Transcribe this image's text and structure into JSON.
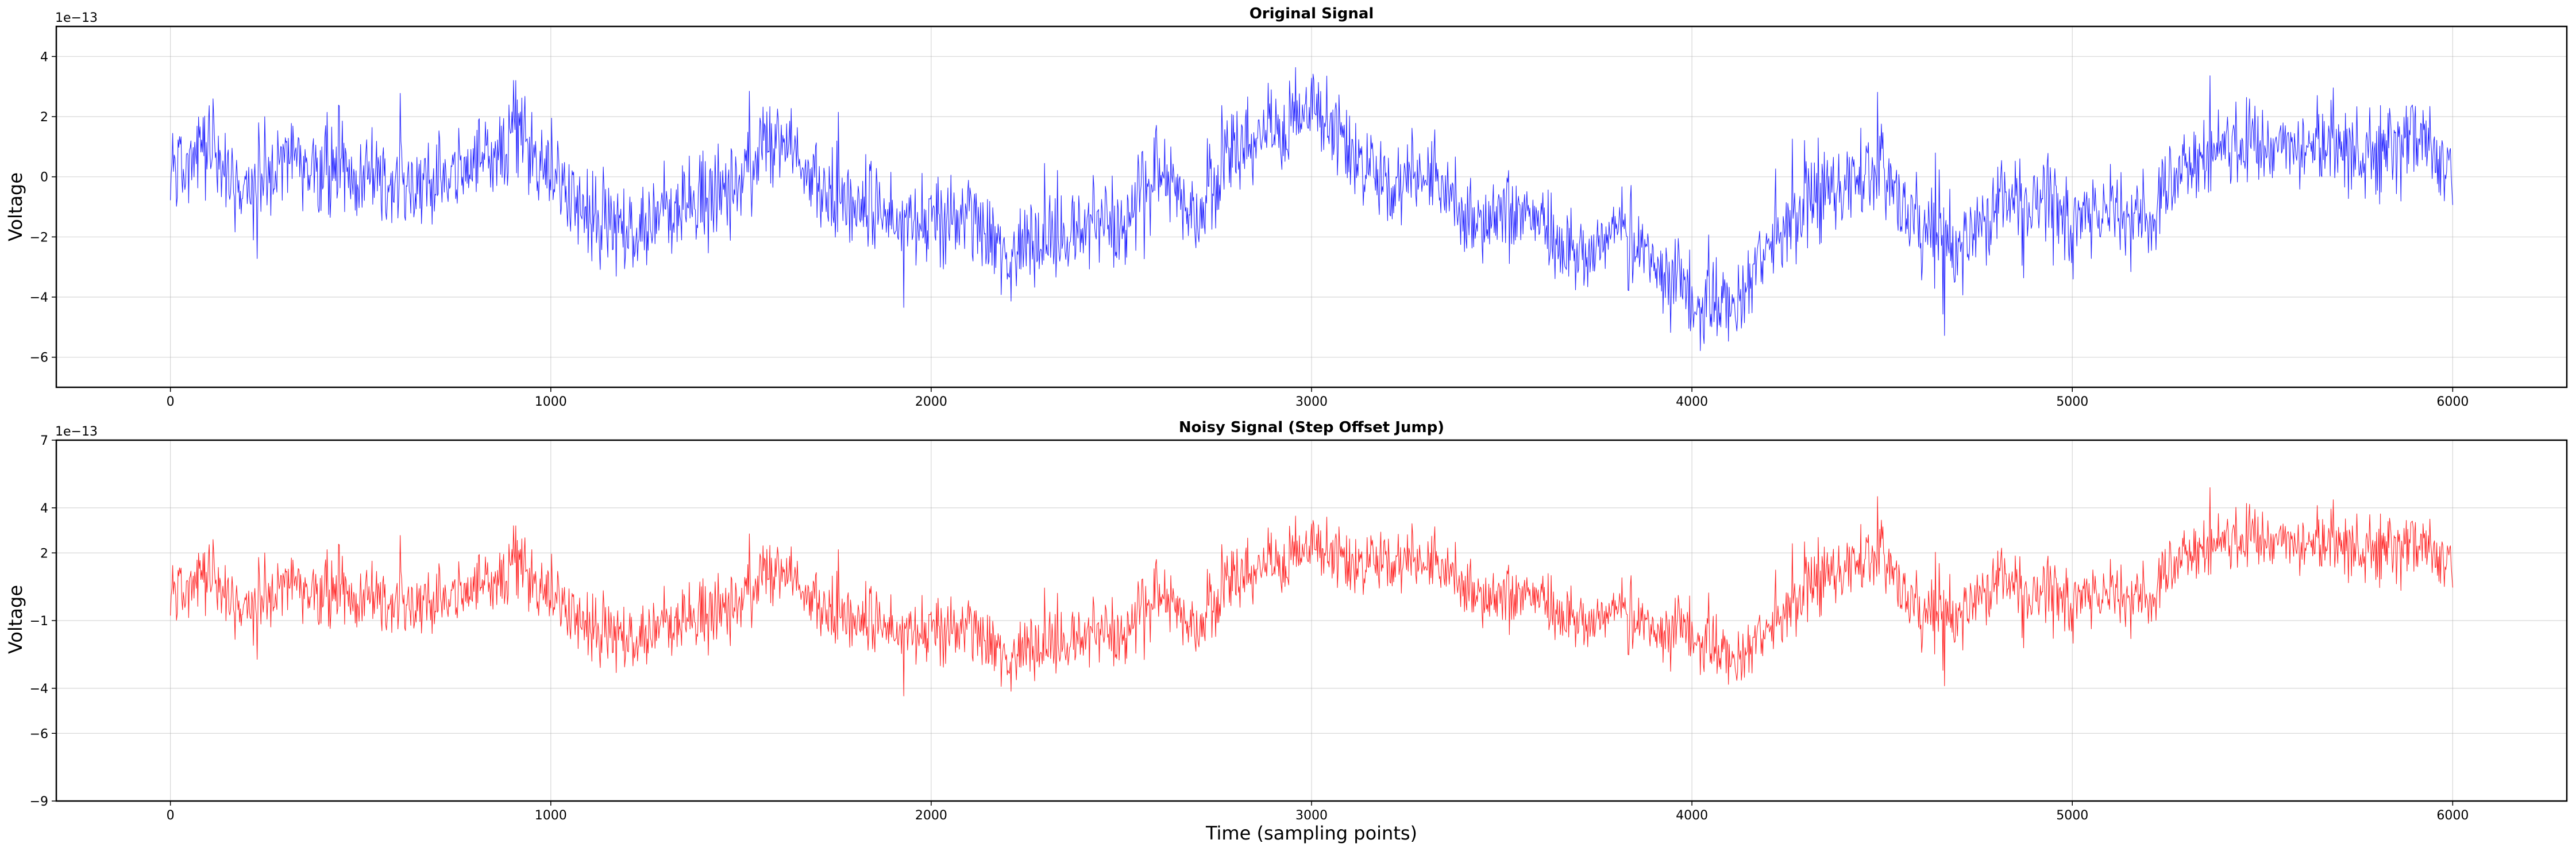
{
  "chart_data": [
    {
      "type": "line",
      "title": "Original Signal",
      "xlabel": "",
      "ylabel": "Voltage",
      "y_offset_text": "1e−13",
      "xlim": [
        -300,
        6300
      ],
      "ylim": [
        -7,
        5
      ],
      "xticks": [
        0,
        1000,
        2000,
        3000,
        4000,
        5000,
        6000
      ],
      "xtick_labels": [
        "0",
        "1000",
        "2000",
        "3000",
        "4000",
        "5000",
        "6000"
      ],
      "yticks": [
        -6,
        -4,
        -2,
        0,
        2,
        4
      ],
      "ytick_labels": [
        "−6",
        "−4",
        "−2",
        "0",
        "2",
        "4"
      ],
      "grid": true,
      "series": [
        {
          "color": "#0000ff",
          "x": [
            0,
            100,
            200,
            300,
            400,
            500,
            600,
            700,
            800,
            900,
            1000,
            1100,
            1200,
            1300,
            1400,
            1500,
            1600,
            1700,
            1800,
            1900,
            2000,
            2100,
            2200,
            2300,
            2400,
            2500,
            2600,
            2700,
            2800,
            2900,
            3000,
            3100,
            3200,
            3300,
            3400,
            3500,
            3600,
            3700,
            3800,
            3900,
            4000,
            4100,
            4200,
            4300,
            4400,
            4500,
            4600,
            4700,
            4800,
            4900,
            5000,
            5100,
            5200,
            5300,
            5400,
            5500,
            5600,
            5700,
            5800,
            5900,
            6000
          ],
          "values": [
            0.3,
            1.0,
            -0.5,
            0.8,
            0.2,
            0.2,
            -0.3,
            0.0,
            0.3,
            1.2,
            0.2,
            -1.0,
            -2.0,
            -1.0,
            -0.8,
            0.0,
            1.3,
            -0.2,
            -0.8,
            -1.5,
            -1.6,
            -1.5,
            -2.6,
            -2.0,
            -1.6,
            -1.5,
            0.2,
            -1.5,
            0.8,
            1.5,
            2.3,
            1.0,
            -0.4,
            0.5,
            -1.3,
            -1.0,
            -1.5,
            -2.8,
            -1.6,
            -3.0,
            -4.0,
            -4.6,
            -2.4,
            -0.8,
            -0.2,
            0.3,
            -1.8,
            -2.5,
            -0.8,
            -0.6,
            -1.4,
            -1.0,
            -1.6,
            0.2,
            1.2,
            1.0,
            1.3,
            0.8,
            0.6,
            1.4,
            0.2
          ]
        }
      ]
    },
    {
      "type": "line",
      "title": "Noisy Signal (Step Offset Jump)",
      "xlabel": "Time (sampling points)",
      "ylabel": "Voltage",
      "y_offset_text": "1e−13",
      "xlim": [
        -300,
        6300
      ],
      "ylim": [
        -9,
        7
      ],
      "xticks": [
        0,
        1000,
        2000,
        3000,
        4000,
        5000,
        6000
      ],
      "xtick_labels": [
        "0",
        "1000",
        "2000",
        "3000",
        "4000",
        "5000",
        "6000"
      ],
      "yticks": [
        -9,
        -6,
        -4,
        -1,
        2,
        4,
        7
      ],
      "ytick_labels": [
        "−9",
        "−6",
        "−4",
        "−1",
        "2",
        "4",
        "7"
      ],
      "grid": true,
      "series": [
        {
          "color": "#ff0000",
          "x": [
            0,
            100,
            200,
            300,
            400,
            500,
            600,
            700,
            800,
            900,
            1000,
            1100,
            1200,
            1300,
            1400,
            1500,
            1600,
            1700,
            1800,
            1900,
            2000,
            2100,
            2200,
            2300,
            2400,
            2500,
            2600,
            2700,
            2800,
            2900,
            3000,
            3100,
            3200,
            3300,
            3400,
            3500,
            3600,
            3700,
            3800,
            3900,
            4000,
            4100,
            4200,
            4300,
            4400,
            4500,
            4600,
            4700,
            4800,
            4900,
            5000,
            5100,
            5200,
            5300,
            5400,
            5500,
            5600,
            5700,
            5800,
            5900,
            6000
          ],
          "values": [
            0.3,
            1.0,
            -0.5,
            0.8,
            0.2,
            0.2,
            -0.3,
            0.0,
            0.3,
            1.2,
            0.2,
            -1.0,
            -2.0,
            -1.0,
            -0.8,
            0.0,
            1.3,
            -0.2,
            -0.8,
            -1.5,
            -1.6,
            -1.5,
            -2.6,
            -2.0,
            -1.6,
            -1.5,
            0.2,
            -1.5,
            0.8,
            1.5,
            2.3,
            1.6,
            1.6,
            2.0,
            0.6,
            0.2,
            0.0,
            -1.2,
            -0.4,
            -1.6,
            -1.4,
            -3.0,
            -1.5,
            0.5,
            1.4,
            2.0,
            -0.8,
            -0.9,
            1.0,
            0.3,
            0.0,
            0.3,
            -0.2,
            1.8,
            2.7,
            2.6,
            2.7,
            2.2,
            2.0,
            2.4,
            1.6
          ]
        }
      ]
    }
  ]
}
